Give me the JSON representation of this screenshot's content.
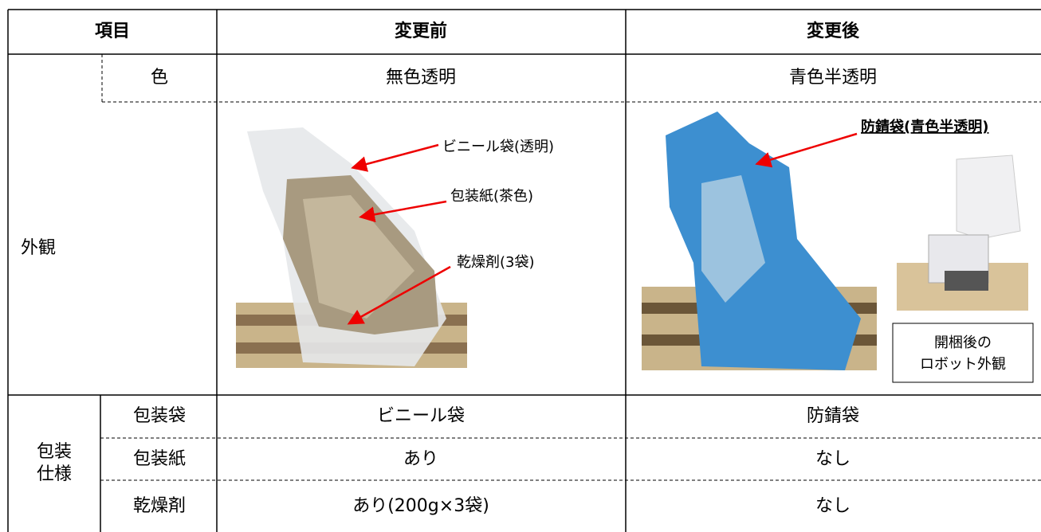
{
  "header": {
    "item": "項目",
    "before": "変更前",
    "after": "変更後"
  },
  "appearance": {
    "label": "外観",
    "color_label": "色",
    "before_color": "無色透明",
    "after_color": "青色半透明",
    "before_callouts": [
      "ビニール袋(透明)",
      "包装紙(茶色)",
      "乾燥剤(3袋)"
    ],
    "after_callout": "防錆袋(青色半透明)",
    "after_caption": [
      "開梱後の",
      "ロボット外観"
    ]
  },
  "packaging": {
    "label": [
      "包装",
      "仕様"
    ],
    "rows": [
      [
        "包装袋",
        "ビニール袋",
        "防錆袋"
      ],
      [
        "包装紙",
        "あり",
        "なし"
      ],
      [
        "乾燥剤",
        "あり(200g×3袋)",
        "なし"
      ]
    ]
  }
}
